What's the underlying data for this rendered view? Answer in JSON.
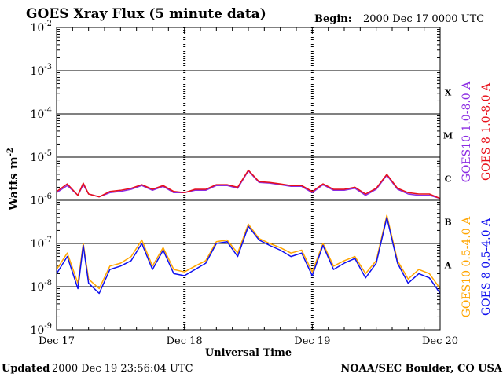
{
  "chart_data": {
    "type": "line",
    "title": "GOES Xray Flux (5 minute data)",
    "begin_label": "Begin:",
    "begin_value": "2000 Dec 17 0000 UTC",
    "xlabel": "Universal Time",
    "ylabel": "Watts m",
    "ylabel_sup": "-2",
    "x_ticks": [
      "Dec 17",
      "Dec 18",
      "Dec 19",
      "Dec 20"
    ],
    "xlim": [
      "2000-12-17 00:00",
      "2000-12-20 00:00"
    ],
    "y_scale": "log",
    "ylim": [
      1e-09,
      0.01
    ],
    "y_ticks": [
      {
        "base": "10",
        "exp": "-9"
      },
      {
        "base": "10",
        "exp": "-8"
      },
      {
        "base": "10",
        "exp": "-7"
      },
      {
        "base": "10",
        "exp": "-6"
      },
      {
        "base": "10",
        "exp": "-5"
      },
      {
        "base": "10",
        "exp": "-4"
      },
      {
        "base": "10",
        "exp": "-3"
      },
      {
        "base": "10",
        "exp": "-2"
      }
    ],
    "flare_classes": [
      {
        "label": "A",
        "decade": -8
      },
      {
        "label": "B",
        "decade": -7
      },
      {
        "label": "C",
        "decade": -6
      },
      {
        "label": "M",
        "decade": -5
      },
      {
        "label": "X",
        "decade": -4
      }
    ],
    "series": [
      {
        "name": "GOES10 1.0-8.0 A",
        "color": "#8b2be2",
        "x_hours": [
          0,
          2,
          4,
          5,
          6,
          8,
          10,
          12,
          14,
          16,
          18,
          20,
          22,
          24,
          26,
          28,
          30,
          32,
          34,
          36,
          38,
          40,
          42,
          44,
          46,
          48,
          50,
          52,
          54,
          56,
          58,
          60,
          62,
          64,
          66,
          68,
          70,
          72
        ],
        "values": [
          1.5e-06,
          2.2e-06,
          1.3e-06,
          2.3e-06,
          1.4e-06,
          1.2e-06,
          1.5e-06,
          1.6e-06,
          1.8e-06,
          2.2e-06,
          1.7e-06,
          2.1e-06,
          1.5e-06,
          1.5e-06,
          1.7e-06,
          1.7e-06,
          2.2e-06,
          2.2e-06,
          1.9e-06,
          4.8e-06,
          2.6e-06,
          2.5e-06,
          2.3e-06,
          2.1e-06,
          2.1e-06,
          1.5e-06,
          2.3e-06,
          1.7e-06,
          1.7e-06,
          1.9e-06,
          1.3e-06,
          1.8e-06,
          3.8e-06,
          1.8e-06,
          1.4e-06,
          1.3e-06,
          1.3e-06,
          1.1e-06
        ]
      },
      {
        "name": "GOES 8 1.0-8.0 A",
        "color": "#e8101a",
        "x_hours": [
          0,
          2,
          4,
          5,
          6,
          8,
          10,
          12,
          14,
          16,
          18,
          20,
          22,
          24,
          26,
          28,
          30,
          32,
          34,
          36,
          38,
          40,
          42,
          44,
          46,
          48,
          50,
          52,
          54,
          56,
          58,
          60,
          62,
          64,
          66,
          68,
          70,
          72
        ],
        "values": [
          1.6e-06,
          2.4e-06,
          1.3e-06,
          2.5e-06,
          1.4e-06,
          1.2e-06,
          1.6e-06,
          1.7e-06,
          1.9e-06,
          2.3e-06,
          1.8e-06,
          2.2e-06,
          1.6e-06,
          1.5e-06,
          1.8e-06,
          1.8e-06,
          2.3e-06,
          2.3e-06,
          2e-06,
          5e-06,
          2.7e-06,
          2.6e-06,
          2.4e-06,
          2.2e-06,
          2.2e-06,
          1.6e-06,
          2.4e-06,
          1.8e-06,
          1.8e-06,
          2e-06,
          1.4e-06,
          1.9e-06,
          4e-06,
          1.9e-06,
          1.5e-06,
          1.4e-06,
          1.4e-06,
          1.1e-06
        ]
      },
      {
        "name": "GOES10 0.5-4.0 A",
        "color": "#ffa500",
        "x_hours": [
          0,
          2,
          4,
          5,
          6,
          8,
          10,
          12,
          14,
          16,
          18,
          20,
          22,
          24,
          26,
          28,
          30,
          32,
          34,
          36,
          38,
          40,
          42,
          44,
          46,
          48,
          50,
          52,
          54,
          56,
          58,
          60,
          62,
          64,
          66,
          68,
          70,
          72
        ],
        "values": [
          2.5e-08,
          6e-08,
          1.2e-08,
          1e-07,
          1.5e-08,
          9e-09,
          3e-08,
          3.5e-08,
          5e-08,
          1.2e-07,
          3e-08,
          8e-08,
          2.5e-08,
          2.2e-08,
          3e-08,
          4e-08,
          1.1e-07,
          1.2e-07,
          6e-08,
          2.8e-07,
          1.3e-07,
          1e-07,
          8e-08,
          6e-08,
          7e-08,
          2.2e-08,
          1e-07,
          3e-08,
          4e-08,
          5e-08,
          2e-08,
          4e-08,
          4.5e-07,
          4e-08,
          1.5e-08,
          2.5e-08,
          2e-08,
          9e-09
        ]
      },
      {
        "name": "GOES 8 0.5-4.0 A",
        "color": "#1010ee",
        "x_hours": [
          0,
          2,
          4,
          5,
          6,
          8,
          10,
          12,
          14,
          16,
          18,
          20,
          22,
          24,
          26,
          28,
          30,
          32,
          34,
          36,
          38,
          40,
          42,
          44,
          46,
          48,
          50,
          52,
          54,
          56,
          58,
          60,
          62,
          64,
          66,
          68,
          70,
          72
        ],
        "values": [
          2e-08,
          5e-08,
          9e-09,
          9e-08,
          1.2e-08,
          7e-09,
          2.5e-08,
          3e-08,
          4e-08,
          1e-07,
          2.5e-08,
          7e-08,
          2e-08,
          1.8e-08,
          2.5e-08,
          3.5e-08,
          1e-07,
          1.1e-07,
          5e-08,
          2.5e-07,
          1.2e-07,
          9e-08,
          7e-08,
          5e-08,
          6e-08,
          1.8e-08,
          9e-08,
          2.5e-08,
          3.5e-08,
          4.5e-08,
          1.6e-08,
          3.5e-08,
          4e-07,
          3.5e-08,
          1.2e-08,
          2e-08,
          1.6e-08,
          7e-09
        ]
      }
    ]
  },
  "footer": {
    "updated_label": "Updated",
    "updated_value": "2000 Dec 19 23:56:04 UTC",
    "credit": "NOAA/SEC Boulder, CO USA"
  }
}
